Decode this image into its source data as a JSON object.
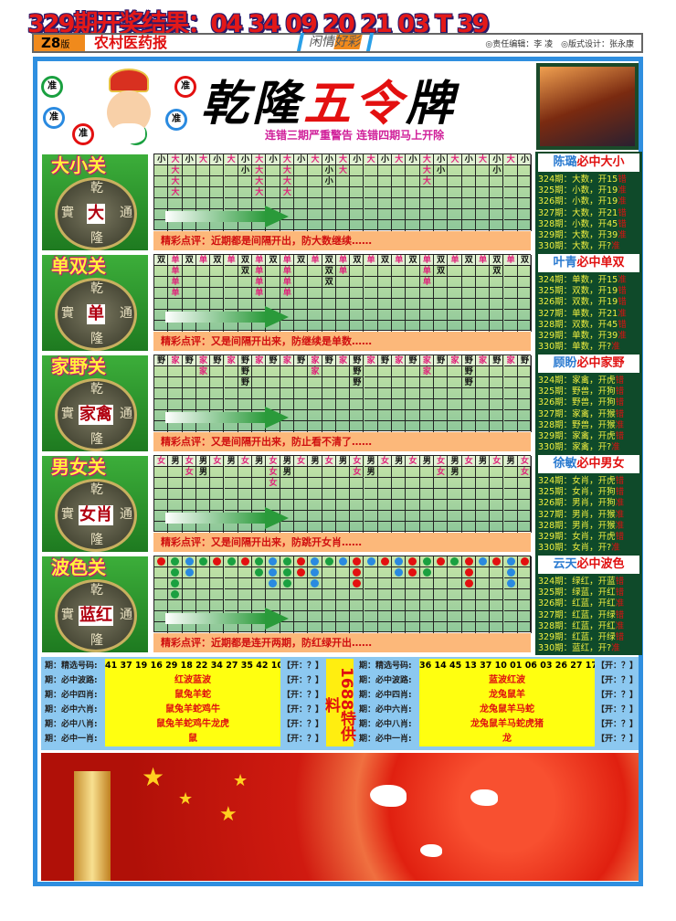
{
  "headline": "329期开奖结果：04 34 09 20 21 03 T 39",
  "band": {
    "version": "Z8",
    "version_suffix": "版",
    "paper": "农村医药报",
    "slogan_a": "闲情",
    "slogan_b": "好彩",
    "credits": "◎责任编辑：李 凌　◎版式设计：张永康"
  },
  "top": {
    "title_a": "乾隆",
    "title_b": "五令",
    "title_c": "牌",
    "warning": "连错三期严重警告 连错四期马上开除",
    "ball_text": "准"
  },
  "coin": {
    "top": "乾",
    "bottom": "隆",
    "left": "實",
    "right": "通"
  },
  "colors": {
    "红": "#e31010",
    "绿": "#1aa040",
    "蓝": "#2a8ae0",
    "accent": "#2f8fe0"
  },
  "sections": [
    {
      "title": "大小关",
      "coin_mark": "大",
      "highlight": "大",
      "columns": [
        "小",
        "大大大大",
        "小",
        "大",
        "小",
        "大",
        "小小",
        "大大大大",
        "小",
        "大大大大",
        "小",
        "大",
        "小小小",
        "大大",
        "小",
        "大",
        "小",
        "大",
        "小",
        "大大大",
        "小小",
        "大",
        "小",
        "大",
        "小小",
        "大",
        "小"
      ],
      "comment": "精彩点评：近期都是间隔开出，防大数继续……",
      "side": {
        "name": "陈璐",
        "pick": "必中大小",
        "lines": [
          [
            "324期：大数，开15",
            "错"
          ],
          [
            "325期：小数，开19",
            "准"
          ],
          [
            "326期：小数，开19",
            "准"
          ],
          [
            "327期：大数，开21",
            "错"
          ],
          [
            "328期：小数，开45",
            "错"
          ],
          [
            "329期：大数，开39",
            "准"
          ],
          [
            "330期：大数，开?",
            "准"
          ]
        ]
      }
    },
    {
      "title": "单双关",
      "coin_mark": "单",
      "highlight": "单",
      "columns": [
        "双",
        "单单单单",
        "双",
        "单",
        "双",
        "单",
        "双双",
        "单单单单",
        "双",
        "单单单单",
        "双",
        "单",
        "双双双",
        "单单",
        "双",
        "单",
        "双",
        "单",
        "双",
        "单单单",
        "双双",
        "单",
        "双",
        "单",
        "双双",
        "单",
        "双"
      ],
      "comment": "精彩点评：又是间隔开出来，防继续是单数……",
      "side": {
        "name": "叶青",
        "pick": "必中单双",
        "lines": [
          [
            "324期：单数，开15",
            "准"
          ],
          [
            "325期：双数，开19",
            "错"
          ],
          [
            "326期：双数，开19",
            "错"
          ],
          [
            "327期：单数，开21",
            "准"
          ],
          [
            "328期：双数，开45",
            "错"
          ],
          [
            "329期：单数，开39",
            "准"
          ],
          [
            "330期：单数，开?",
            "准"
          ]
        ]
      }
    },
    {
      "title": "家野关",
      "coin_mark": "家禽",
      "highlight": "家",
      "columns": [
        "野",
        "家",
        "野",
        "家家",
        "野",
        "家",
        "野野野",
        "家",
        "野",
        "家",
        "野",
        "家家",
        "野",
        "家",
        "野野野",
        "家",
        "野",
        "家",
        "野",
        "家家",
        "野",
        "家",
        "野野野",
        "家",
        "野",
        "家",
        "野"
      ],
      "comment": "精彩点评：又是间隔开出来，防止看不清了……",
      "side": {
        "name": "顾盼",
        "pick": "必中家野",
        "lines": [
          [
            "324期：家禽，开虎",
            "错"
          ],
          [
            "325期：野兽，开狗",
            "错"
          ],
          [
            "326期：野兽，开狗",
            "错"
          ],
          [
            "327期：家禽，开猴",
            "错"
          ],
          [
            "328期：野兽，开猴",
            "准"
          ],
          [
            "329期：家禽，开虎",
            "错"
          ],
          [
            "330期：家禽，开?",
            "准"
          ]
        ]
      }
    },
    {
      "title": "男女关",
      "coin_mark": "女肖",
      "highlight": "女",
      "columns": [
        "女",
        "男",
        "女女",
        "男男",
        "女",
        "男",
        "女",
        "男",
        "女女女",
        "男男",
        "女",
        "男",
        "女",
        "男",
        "女女",
        "男男",
        "女",
        "男",
        "女",
        "男",
        "女女",
        "男男",
        "女",
        "男",
        "女",
        "男",
        "女女"
      ],
      "comment": "精彩点评：又是间隔开出来，防跳开女肖……",
      "side": {
        "name": "徐敏",
        "pick": "必中男女",
        "lines": [
          [
            "324期：女肖，开虎",
            "错"
          ],
          [
            "325期：女肖，开狗",
            "错"
          ],
          [
            "326期：男肖，开狗",
            "准"
          ],
          [
            "327期：男肖，开猴",
            "准"
          ],
          [
            "328期：男肖，开猴",
            "准"
          ],
          [
            "329期：女肖，开虎",
            "错"
          ],
          [
            "330期：女肖，开?",
            "准"
          ]
        ]
      }
    },
    {
      "title": "波色关",
      "coin_mark": "蓝红",
      "highlight": "",
      "columns": [
        "红",
        "绿绿绿绿",
        "蓝蓝",
        "绿",
        "红",
        "绿",
        "红",
        "绿绿",
        "蓝蓝蓝",
        "绿绿绿",
        "红红",
        "蓝蓝蓝",
        "绿",
        "蓝",
        "红红红",
        "蓝",
        "红",
        "蓝蓝",
        "红红",
        "绿绿",
        "红",
        "绿",
        "红红红",
        "蓝",
        "红",
        "蓝蓝蓝",
        "红"
      ],
      "comment": "精彩点评：近期都是连开两期，防红绿开出……",
      "side": {
        "name": "云天",
        "pick": "必中波色",
        "lines": [
          [
            "324期：绿红，开蓝",
            "错"
          ],
          [
            "325期：绿蓝，开红",
            "错"
          ],
          [
            "326期：红蓝，开红",
            "准"
          ],
          [
            "327期：红蓝，开绿",
            "错"
          ],
          [
            "328期：红蓝，开红",
            "准"
          ],
          [
            "329期：红蓝，开绿",
            "错"
          ],
          [
            "330期：蓝红，开?",
            "准"
          ]
        ]
      }
    }
  ],
  "picks": {
    "center_label": "1688特供料",
    "left": [
      {
        "label": "期：精选号码:",
        "value": "41 37 19 16 29 18 22 34 27 35 42 10",
        "open": "【开：？】"
      },
      {
        "label": "期：必中波路:",
        "value": "红波蓝波",
        "open": "【开：？】"
      },
      {
        "label": "期：必中四肖:",
        "value": "鼠兔羊蛇",
        "open": "【开：？】"
      },
      {
        "label": "期：必中六肖:",
        "value": "鼠兔羊蛇鸡牛",
        "open": "【开：？】"
      },
      {
        "label": "期：必中八肖:",
        "value": "鼠兔羊蛇鸡牛龙虎",
        "open": "【开：？】"
      },
      {
        "label": "期：必中一肖:",
        "value": "鼠",
        "open": "【开：？】"
      }
    ],
    "right": [
      {
        "label": "期：精选号码:",
        "value": "36 14 45 13 37 10 01 06 03 26 27 17",
        "open": "【开：？】"
      },
      {
        "label": "期：必中波路:",
        "value": "蓝波红波",
        "open": "【开：？】"
      },
      {
        "label": "期：必中四肖:",
        "value": "龙兔鼠羊",
        "open": "【开：？】"
      },
      {
        "label": "期：必中六肖:",
        "value": "龙兔鼠羊马蛇",
        "open": "【开：？】"
      },
      {
        "label": "期：必中八肖:",
        "value": "龙兔鼠羊马蛇虎猪",
        "open": "【开：？】"
      },
      {
        "label": "期：必中一肖:",
        "value": "龙",
        "open": "【开：？】"
      }
    ]
  }
}
